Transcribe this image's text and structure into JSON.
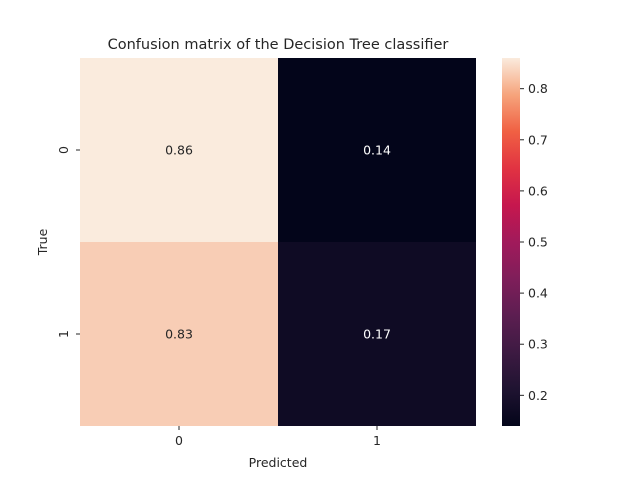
{
  "chart_data": {
    "type": "heatmap",
    "title": "Confusion matrix of the Decision Tree classifier",
    "xlabel": "Predicted",
    "ylabel": "True",
    "x_categories": [
      "0",
      "1"
    ],
    "y_categories": [
      "0",
      "1"
    ],
    "values": [
      [
        0.86,
        0.14
      ],
      [
        0.83,
        0.17
      ]
    ],
    "value_labels": [
      [
        "0.86",
        "0.14"
      ],
      [
        "0.83",
        "0.17"
      ]
    ],
    "colorbar": {
      "vmin": 0.14,
      "vmax": 0.86,
      "ticks": [
        0.2,
        0.3,
        0.4,
        0.5,
        0.6,
        0.7,
        0.8
      ],
      "tick_labels": [
        "0.2",
        "0.3",
        "0.4",
        "0.5",
        "0.6",
        "0.7",
        "0.8"
      ],
      "colormap": "rocket"
    },
    "annotation_colors": {
      "on_light": "#262626",
      "on_dark": "#ffffff"
    }
  }
}
